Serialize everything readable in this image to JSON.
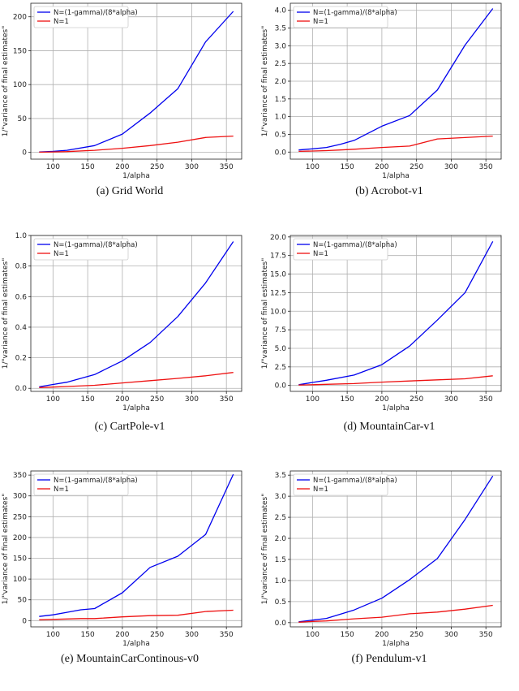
{
  "colors": {
    "series_1": "#0000ee",
    "series_2": "#ee1111",
    "grid": "#b0b0b0"
  },
  "chart_data": [
    {
      "type": "line",
      "caption": "(a) Grid World",
      "xlabel": "1/alpha",
      "ylabel": "1/\"variance of final estimates\"",
      "xlim": [
        68,
        372
      ],
      "ylim": [
        -10,
        220
      ],
      "xticks": [
        100,
        150,
        200,
        250,
        300,
        350
      ],
      "yticks": [
        0,
        50,
        100,
        150,
        200
      ],
      "ytick_labels": [
        "0",
        "50",
        "100",
        "150",
        "200"
      ],
      "x": [
        80,
        100,
        120,
        160,
        200,
        240,
        280,
        320,
        360
      ],
      "series": [
        {
          "name": "N=(1-gamma)/(8*alpha)",
          "values": [
            0.5,
            1.5,
            3,
            10,
            27,
            58,
            94,
            163,
            208
          ]
        },
        {
          "name": "N=1",
          "values": [
            0.3,
            0.7,
            1.2,
            3,
            6,
            10,
            15,
            22,
            24
          ]
        }
      ]
    },
    {
      "type": "line",
      "caption": "(b) Acrobot-v1",
      "xlabel": "1/alpha",
      "ylabel": "1/\"variance of final estimates\"",
      "xlim": [
        68,
        372
      ],
      "ylim": [
        -0.2,
        4.2
      ],
      "xticks": [
        100,
        150,
        200,
        250,
        300,
        350
      ],
      "yticks": [
        0,
        0.5,
        1,
        1.5,
        2,
        2.5,
        3,
        3.5,
        4
      ],
      "ytick_labels": [
        "0.0",
        "0.5",
        "1.0",
        "1.5",
        "2.0",
        "2.5",
        "3.0",
        "3.5",
        "4.0"
      ],
      "x": [
        80,
        100,
        120,
        140,
        160,
        200,
        240,
        280,
        320,
        360
      ],
      "series": [
        {
          "name": "N=(1-gamma)/(8*alpha)",
          "values": [
            0.06,
            0.09,
            0.13,
            0.22,
            0.33,
            0.73,
            1.03,
            1.75,
            3.02,
            4.05
          ]
        },
        {
          "name": "N=1",
          "values": [
            0.02,
            0.03,
            0.04,
            0.06,
            0.08,
            0.13,
            0.17,
            0.37,
            0.41,
            0.45
          ]
        }
      ]
    },
    {
      "type": "line",
      "caption": "(c) CartPole-v1",
      "xlabel": "1/alpha",
      "ylabel": "1/\"variance of final estimates\"",
      "xlim": [
        68,
        372
      ],
      "ylim": [
        -0.02,
        1.0
      ],
      "xticks": [
        100,
        150,
        200,
        250,
        300,
        350
      ],
      "yticks": [
        0,
        0.2,
        0.4,
        0.6,
        0.8,
        1.0
      ],
      "ytick_labels": [
        "0.0",
        "0.2",
        "0.4",
        "0.6",
        "0.8",
        "1.0"
      ],
      "x": [
        80,
        100,
        120,
        160,
        200,
        240,
        280,
        320,
        360
      ],
      "series": [
        {
          "name": "N=(1-gamma)/(8*alpha)",
          "values": [
            0.01,
            0.025,
            0.04,
            0.09,
            0.18,
            0.3,
            0.47,
            0.69,
            0.96
          ]
        },
        {
          "name": "N=1",
          "values": [
            0.005,
            0.008,
            0.012,
            0.02,
            0.035,
            0.05,
            0.065,
            0.082,
            0.104
          ]
        }
      ]
    },
    {
      "type": "line",
      "caption": "(d) MountainCar-v1",
      "xlabel": "1/alpha",
      "ylabel": "1/\"variance of final estimates\"",
      "xlim": [
        68,
        372
      ],
      "ylim": [
        -0.8,
        20.2
      ],
      "xticks": [
        100,
        150,
        200,
        250,
        300,
        350
      ],
      "yticks": [
        0,
        2.5,
        5,
        7.5,
        10,
        12.5,
        15,
        17.5,
        20
      ],
      "ytick_labels": [
        "0.0",
        "2.5",
        "5.0",
        "7.5",
        "10.0",
        "12.5",
        "15.0",
        "17.5",
        "20.0"
      ],
      "x": [
        80,
        100,
        120,
        160,
        200,
        240,
        280,
        320,
        360
      ],
      "series": [
        {
          "name": "N=(1-gamma)/(8*alpha)",
          "values": [
            0.1,
            0.4,
            0.7,
            1.4,
            2.8,
            5.3,
            8.8,
            12.5,
            19.4
          ]
        },
        {
          "name": "N=1",
          "values": [
            0.05,
            0.1,
            0.15,
            0.25,
            0.45,
            0.6,
            0.75,
            0.9,
            1.3
          ]
        }
      ]
    },
    {
      "type": "line",
      "caption": "(e) MountainCarContinous-v0",
      "xlabel": "1/alpha",
      "ylabel": "1/\"variance of final estimates\"",
      "xlim": [
        68,
        372
      ],
      "ylim": [
        -15,
        360
      ],
      "xticks": [
        100,
        150,
        200,
        250,
        300,
        350
      ],
      "yticks": [
        0,
        50,
        100,
        150,
        200,
        250,
        300,
        350
      ],
      "ytick_labels": [
        "0",
        "50",
        "100",
        "150",
        "200",
        "250",
        "300",
        "350"
      ],
      "x": [
        80,
        100,
        120,
        140,
        160,
        200,
        240,
        280,
        320,
        360
      ],
      "series": [
        {
          "name": "N=(1-gamma)/(8*alpha)",
          "values": [
            10,
            14,
            20,
            26,
            29,
            67,
            128,
            155,
            207,
            352
          ]
        },
        {
          "name": "N=1",
          "values": [
            2,
            3,
            4,
            5,
            5,
            9,
            12,
            13,
            22,
            25
          ]
        }
      ]
    },
    {
      "type": "line",
      "caption": "(f) Pendulum-v1",
      "xlabel": "1/alpha",
      "ylabel": "1/\"variance of final estimates\"",
      "xlim": [
        68,
        372
      ],
      "ylim": [
        -0.1,
        3.6
      ],
      "xticks": [
        100,
        150,
        200,
        250,
        300,
        350
      ],
      "yticks": [
        0,
        0.5,
        1,
        1.5,
        2,
        2.5,
        3,
        3.5
      ],
      "ytick_labels": [
        "0.0",
        "0.5",
        "1.0",
        "1.5",
        "2.0",
        "2.5",
        "3.0",
        "3.5"
      ],
      "x": [
        80,
        100,
        120,
        160,
        200,
        240,
        280,
        320,
        360
      ],
      "series": [
        {
          "name": "N=(1-gamma)/(8*alpha)",
          "values": [
            0.02,
            0.06,
            0.1,
            0.3,
            0.58,
            1.02,
            1.52,
            2.45,
            3.48
          ]
        },
        {
          "name": "N=1",
          "values": [
            0.01,
            0.03,
            0.04,
            0.09,
            0.13,
            0.21,
            0.25,
            0.32,
            0.41
          ]
        }
      ]
    }
  ]
}
